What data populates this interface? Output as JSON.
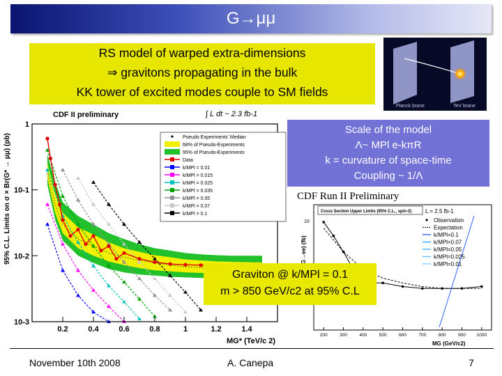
{
  "slide": {
    "title": "G→μμ",
    "intro_lines": [
      "RS model of warped extra-dimensions",
      "⇒ gravitons propagating in the bulk",
      "KK tower of excited modes couple to SM fields"
    ],
    "figure_labels": [
      "Planck brane",
      "TeV brane"
    ],
    "scale_lines": [
      "Scale of the model",
      "Λ~ MPl e-kπR",
      "k = curvature of space-time",
      "Coupling ~ 1/Λ"
    ],
    "graviton_lines": [
      "Graviton @ k/MPl = 0.1",
      "m > 850 GeV/c2 at 95% C.L"
    ],
    "footer": {
      "date": "November 10th 2008",
      "author": "A. Canepa",
      "page": "7"
    }
  },
  "chart_data": [
    {
      "type": "line",
      "title": "CDF II preliminary",
      "luminosity": "∫ L dt ~ 2.3 fb-1",
      "ylabel": "95% C.L. Limits on σ × Br(G* → μμ) (pb)",
      "xlabel": "MG* (TeV/c 2)",
      "log_y": true,
      "xlim": [
        0,
        1.6
      ],
      "ylim": [
        0.001,
        1
      ],
      "x_ticks": [
        "0.2",
        "0.4",
        "0.6",
        "0.8",
        "1",
        "1.2",
        "1.4"
      ],
      "y_ticks": [
        "1",
        "10-1",
        "10-2",
        "10-3"
      ],
      "legend_position": "top-right",
      "legend": [
        "Pseudo Experiments' Median",
        "68% of Pseudo-Experiments",
        "95% of Pseudo-Experiments",
        "Data",
        "k/MPl = 0.01",
        "k/MPl = 0.015",
        "k/MPl = 0.025",
        "k/MPl = 0.035",
        "k/MPl = 0.05",
        "k/MPl = 0.07",
        "k/MPl = 0.1"
      ],
      "series_colors": [
        "#0000ff",
        "#ff00ff",
        "#00c0c0",
        "#00a000",
        "#909090",
        "#c8c8c8",
        "#000000"
      ],
      "band_x": [
        0.1,
        0.15,
        0.2,
        0.3,
        0.4,
        0.5,
        0.6,
        0.7,
        0.8,
        0.9,
        1.0,
        1.1,
        1.2,
        1.3,
        1.4,
        1.5
      ],
      "median": [
        0.18,
        0.06,
        0.03,
        0.018,
        0.014,
        0.011,
        0.0095,
        0.0085,
        0.0078,
        0.0072,
        0.0068,
        0.0066,
        0.0064,
        0.0063,
        0.0062,
        0.0062
      ],
      "band95_low": [
        0.12,
        0.035,
        0.017,
        0.01,
        0.0078,
        0.0063,
        0.0056,
        0.0052,
        0.005,
        0.0048,
        0.0047,
        0.0046,
        0.0046,
        0.0045,
        0.0045,
        0.0045
      ],
      "band95_high": [
        0.35,
        0.13,
        0.065,
        0.04,
        0.03,
        0.022,
        0.018,
        0.015,
        0.013,
        0.012,
        0.011,
        0.0105,
        0.0102,
        0.01,
        0.01,
        0.01
      ],
      "band68_low": [
        0.15,
        0.045,
        0.022,
        0.013,
        0.01,
        0.0082,
        0.0072,
        0.0065,
        0.006,
        0.0058,
        0.0056,
        0.0055,
        0.0054,
        0.0054,
        0.0053,
        0.0053
      ],
      "band68_high": [
        0.25,
        0.09,
        0.045,
        0.027,
        0.021,
        0.016,
        0.013,
        0.0115,
        0.0102,
        0.0095,
        0.0088,
        0.0085,
        0.0082,
        0.0081,
        0.008,
        0.0079
      ],
      "data": {
        "x": [
          0.1,
          0.12,
          0.15,
          0.18,
          0.2,
          0.25,
          0.3,
          0.35,
          0.4,
          0.45,
          0.5,
          0.55,
          0.6,
          0.7,
          0.8,
          0.9,
          1.0,
          1.1,
          1.2,
          1.3,
          1.4,
          1.5
        ],
        "y": [
          0.6,
          0.3,
          0.12,
          0.06,
          0.035,
          0.02,
          0.025,
          0.015,
          0.02,
          0.012,
          0.014,
          0.009,
          0.011,
          0.009,
          0.008,
          0.0075,
          0.0073,
          0.0072,
          0.0072,
          0.0072,
          0.0072,
          0.0072
        ]
      },
      "theory_curves": [
        {
          "x": [
            0.1,
            0.2,
            0.3,
            0.4,
            0.5
          ],
          "y": [
            0.03,
            0.006,
            0.0025,
            0.0014,
            0.001
          ]
        },
        {
          "x": [
            0.1,
            0.2,
            0.3,
            0.4,
            0.5,
            0.6
          ],
          "y": [
            0.06,
            0.015,
            0.006,
            0.003,
            0.0017,
            0.001
          ]
        },
        {
          "x": [
            0.1,
            0.2,
            0.3,
            0.4,
            0.5,
            0.6,
            0.7
          ],
          "y": [
            0.2,
            0.04,
            0.016,
            0.007,
            0.0035,
            0.002,
            0.0011
          ]
        },
        {
          "x": [
            0.1,
            0.2,
            0.3,
            0.4,
            0.5,
            0.6,
            0.7,
            0.8
          ],
          "y": [
            0.4,
            0.08,
            0.03,
            0.014,
            0.007,
            0.004,
            0.0022,
            0.0012
          ]
        },
        {
          "x": [
            0.2,
            0.3,
            0.4,
            0.5,
            0.6,
            0.7,
            0.8,
            0.9
          ],
          "y": [
            0.2,
            0.07,
            0.03,
            0.015,
            0.008,
            0.0045,
            0.0025,
            0.0015
          ]
        },
        {
          "x": [
            0.3,
            0.4,
            0.5,
            0.6,
            0.7,
            0.8,
            0.9,
            1.0
          ],
          "y": [
            0.15,
            0.06,
            0.03,
            0.015,
            0.008,
            0.0045,
            0.0025,
            0.0014
          ]
        },
        {
          "x": [
            0.4,
            0.5,
            0.6,
            0.7,
            0.8,
            0.9,
            1.0,
            1.1
          ],
          "y": [
            0.13,
            0.06,
            0.03,
            0.016,
            0.009,
            0.005,
            0.0028,
            0.0015
          ]
        }
      ]
    },
    {
      "type": "line",
      "title": "CDF Run II Preliminary",
      "legend_title": "Cross Section Upper Limits (95% C.L., spin-2)",
      "luminosity": "L = 2.5 fb-1",
      "ylabel": "σ·(G→ee) (fb)",
      "xlabel": "MG (GeV/c2)",
      "log_y": true,
      "x_ticks": [
        "200",
        "300",
        "400",
        "500",
        "600",
        "700",
        "800",
        "900",
        "1000"
      ],
      "legend": [
        "Observation",
        "Expectation",
        "k/MPl=0.1",
        "k/MPl=0.07",
        "k/MPl=0.05",
        "k/MPl=0.025",
        "k/MPl=0.01"
      ],
      "y_ticks": [
        "10"
      ],
      "series_colors": [
        "#3060ff",
        "#30a0ff",
        "#40b0ff",
        "#60c0ff",
        "#80d0ff"
      ],
      "observation": {
        "x": [
          200,
          250,
          300,
          350,
          400,
          450,
          500,
          600,
          700,
          800,
          900,
          1000
        ],
        "y": [
          12,
          8,
          5,
          3,
          2.5,
          2,
          2,
          1.8,
          1.7,
          1.7,
          1.7,
          1.8
        ]
      },
      "expectation": {
        "x": [
          200,
          300,
          400,
          500,
          600,
          700,
          800,
          900,
          1000
        ],
        "y": [
          10,
          5,
          3,
          2.3,
          2,
          1.8,
          1.7,
          1.7,
          1.7
        ]
      }
    }
  ]
}
